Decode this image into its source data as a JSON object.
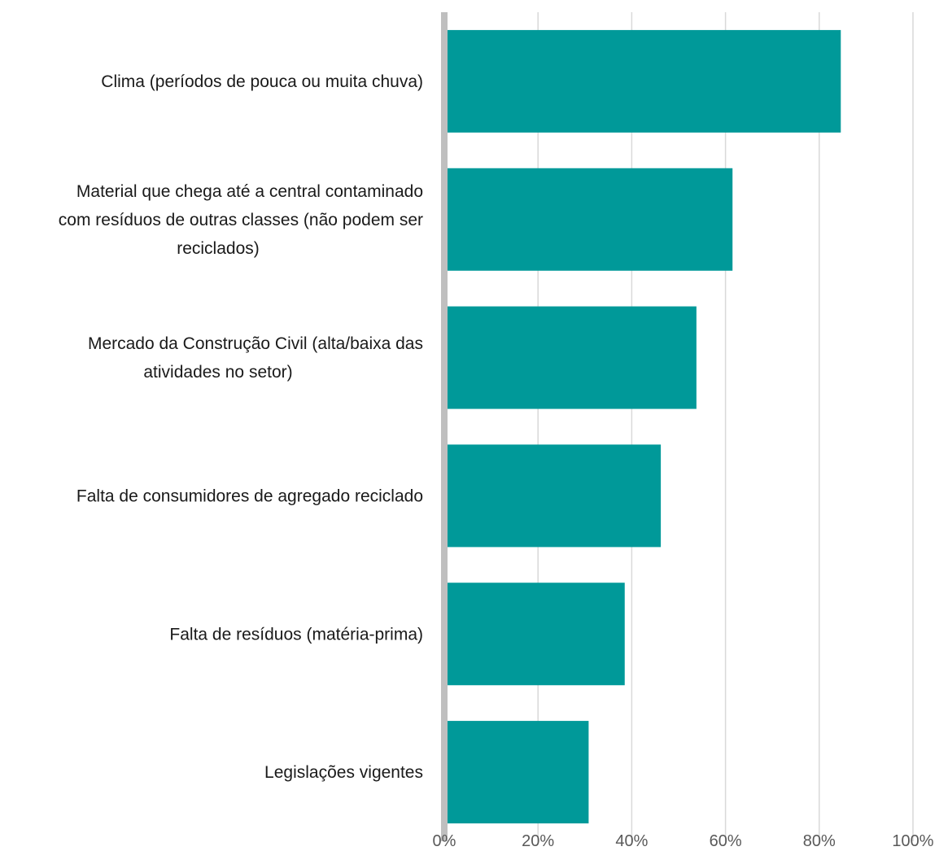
{
  "chart_data": {
    "type": "bar",
    "orientation": "horizontal",
    "categories": [
      [
        "Clima (períodos de pouca ou muita chuva)"
      ],
      [
        "Material que chega até a central contaminado",
        "com resíduos de outras classes (não podem ser",
        "reciclados)"
      ],
      [
        "Mercado da Construção Civil (alta/baixa das",
        "atividades no setor)"
      ],
      [
        "Falta de consumidores de agregado reciclado"
      ],
      [
        "Falta de resíduos (matéria-prima)"
      ],
      [
        "Legislações vigentes"
      ]
    ],
    "values": [
      84.6,
      61.5,
      53.8,
      46.2,
      38.5,
      30.8
    ],
    "xlim": [
      0,
      100
    ],
    "xticks": [
      0,
      20,
      40,
      60,
      80,
      100
    ],
    "xtick_labels": [
      "0%",
      "20%",
      "40%",
      "60%",
      "80%",
      "100%"
    ],
    "grid": true,
    "colors": {
      "bar": "#009999",
      "grid": "#d9d9d9",
      "axis": "#bfbfbf"
    }
  }
}
